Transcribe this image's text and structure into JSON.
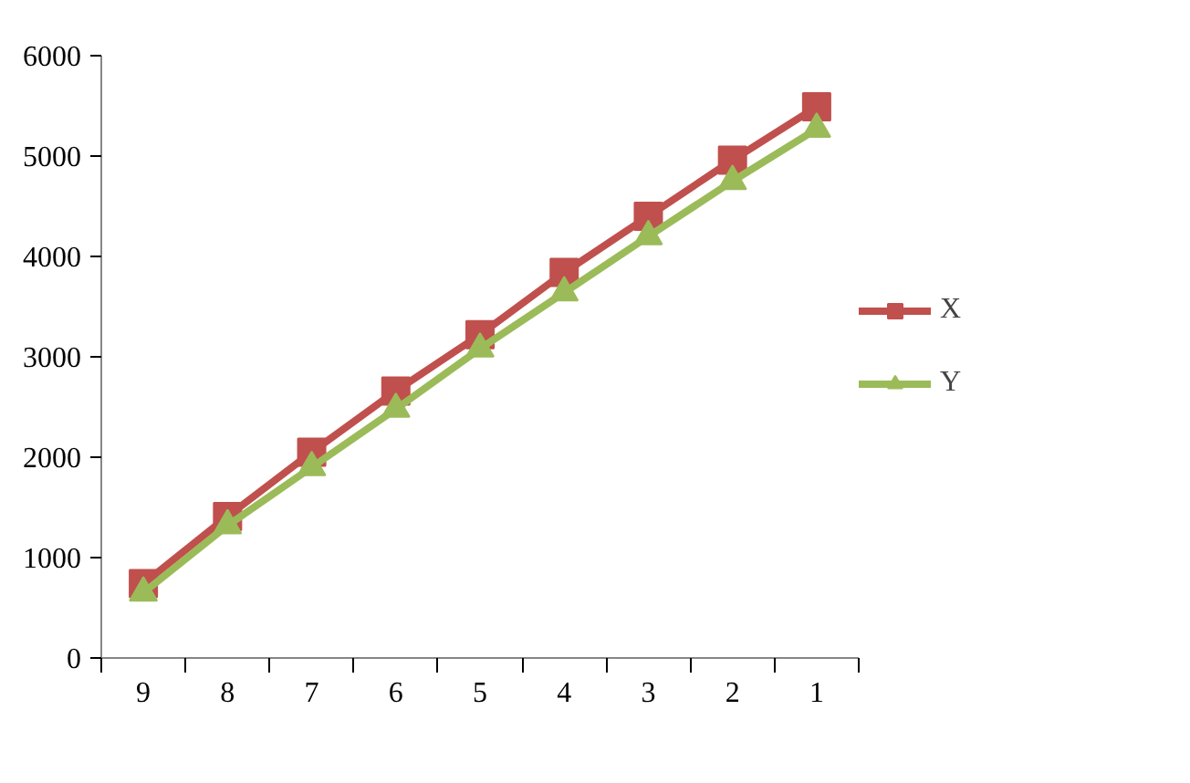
{
  "chart_data": {
    "type": "line",
    "categories": [
      "9",
      "8",
      "7",
      "6",
      "5",
      "4",
      "3",
      "2",
      "1"
    ],
    "series": [
      {
        "name": "X",
        "color": "#c0504d",
        "marker": "square",
        "values": [
          740,
          1410,
          2050,
          2660,
          3220,
          3840,
          4400,
          4960,
          5490
        ]
      },
      {
        "name": "Y",
        "color": "#9bbb59",
        "marker": "triangle",
        "values": [
          650,
          1320,
          1900,
          2480,
          3080,
          3640,
          4200,
          4750,
          5270
        ]
      }
    ],
    "ylim": [
      0,
      6000
    ],
    "yticks": [
      0,
      1000,
      2000,
      3000,
      4000,
      5000,
      6000
    ],
    "grid": false,
    "legend": "right",
    "line_style": "solid"
  }
}
